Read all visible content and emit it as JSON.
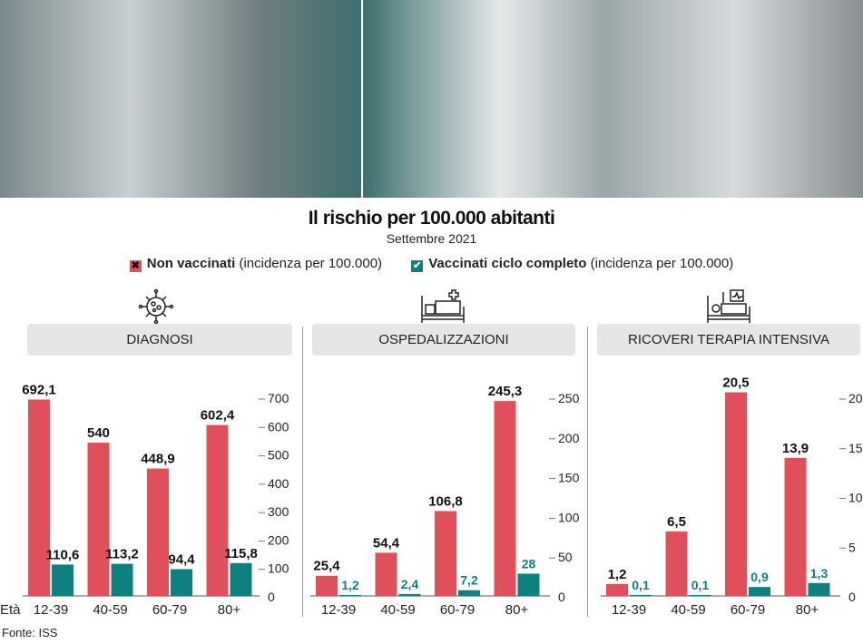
{
  "title": "Il rischio per 100.000 abitanti",
  "subtitle": "Settembre 2021",
  "legend": [
    {
      "bold": "Non vaccinati",
      "rest": " (incidenza per 100.000)",
      "color": "#e0505a",
      "mark": "✖"
    },
    {
      "bold": "Vaccinati ciclo completo",
      "rest": " (incidenza per 100.000)",
      "color": "#0e8080",
      "mark": "✔"
    }
  ],
  "source": "Fonte: ISS",
  "age_label": "Età",
  "chart_data": [
    {
      "type": "bar",
      "title": "DIAGNOSI",
      "icon": "virus-icon",
      "categories": [
        "12-39",
        "40-59",
        "60-79",
        "80+"
      ],
      "series": [
        {
          "name": "Non vaccinati",
          "values": [
            692.1,
            540,
            448.9,
            602.4
          ],
          "labels": [
            "692,1",
            "540",
            "448,9",
            "602,4"
          ]
        },
        {
          "name": "Vaccinati ciclo completo",
          "values": [
            110.6,
            113.2,
            94.4,
            115.8
          ],
          "labels": [
            "110,6",
            "113,2",
            "94,4",
            "115,8"
          ]
        }
      ],
      "ylim": [
        0,
        700
      ],
      "yticks": [
        0,
        100,
        200,
        300,
        400,
        500,
        600,
        700
      ]
    },
    {
      "type": "bar",
      "title": "OSPEDALIZZAZIONI",
      "icon": "hospital-bed-icon",
      "categories": [
        "12-39",
        "40-59",
        "60-79",
        "80+"
      ],
      "series": [
        {
          "name": "Non vaccinati",
          "values": [
            25.4,
            54.4,
            106.8,
            245.3
          ],
          "labels": [
            "25,4",
            "54,4",
            "106,8",
            "245,3"
          ]
        },
        {
          "name": "Vaccinati ciclo completo",
          "values": [
            1.2,
            2.4,
            7.2,
            28
          ],
          "labels": [
            "1,2",
            "2,4",
            "7,2",
            "28"
          ]
        }
      ],
      "ylim": [
        0,
        250
      ],
      "yticks": [
        0,
        50,
        100,
        150,
        200,
        250
      ]
    },
    {
      "type": "bar",
      "title": "RICOVERI TERAPIA INTENSIVA",
      "icon": "icu-bed-icon",
      "categories": [
        "12-39",
        "40-59",
        "60-79",
        "80+"
      ],
      "series": [
        {
          "name": "Non vaccinati",
          "values": [
            1.2,
            6.5,
            20.5,
            13.9
          ],
          "labels": [
            "1,2",
            "6,5",
            "20,5",
            "13,9"
          ]
        },
        {
          "name": "Vaccinati ciclo completo",
          "values": [
            0.1,
            0.1,
            0.9,
            1.3
          ],
          "labels": [
            "0,1",
            "0,1",
            "0,9",
            "1,3"
          ]
        }
      ],
      "ylim": [
        0,
        20
      ],
      "yticks": [
        0,
        5,
        10,
        15,
        20
      ]
    }
  ]
}
